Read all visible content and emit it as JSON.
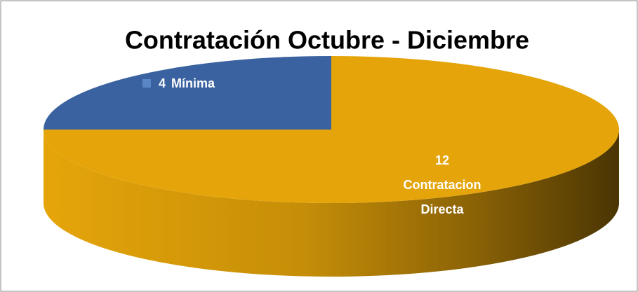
{
  "chart_data": {
    "type": "pie",
    "title": "Contratación Octubre - Diciembre",
    "categories": [
      "Mínima",
      "Contratacion Directa"
    ],
    "values": [
      4,
      12
    ],
    "colors": [
      "#3a62a0",
      "#e5a50a"
    ]
  }
}
